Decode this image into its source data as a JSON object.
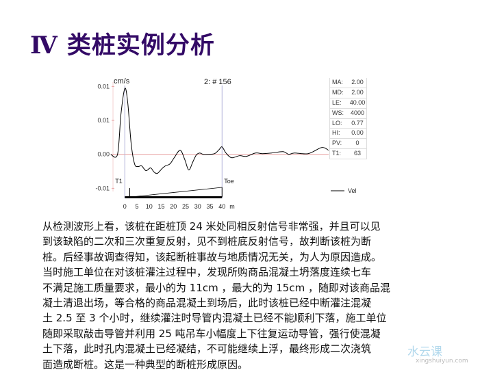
{
  "title": "Ⅳ 类桩实例分析",
  "chart_data": {
    "type": "line",
    "unit_label": "cm/s",
    "header": "2: # 156",
    "xlabel": "m",
    "x_ticks": [
      "0",
      "5",
      "10",
      "15",
      "20",
      "25",
      "30",
      "35",
      "40"
    ],
    "y_ticks": [
      {
        "value": 0.01,
        "label": "0.01"
      },
      {
        "value": 0.005,
        "label": "0.01"
      },
      {
        "value": 0.0,
        "label": "0.00"
      },
      {
        "value": -0.005,
        "label": "-0.01"
      }
    ],
    "markers": [
      {
        "label": "T1",
        "x": 0
      },
      {
        "label": "Toe",
        "x": 40
      }
    ],
    "legend": {
      "label": "Vel",
      "placement": "right"
    },
    "series": [
      {
        "name": "Vel",
        "x": [
          -5.8,
          -3.0,
          -1.6,
          0,
          1.2,
          2.6,
          4.0,
          5.4,
          6.9,
          8.7,
          10.6,
          12.0,
          13.4,
          15.3,
          16.7,
          18.6,
          20.5,
          22.8,
          24.7,
          26.3,
          28.0,
          29.4,
          30.8,
          32.2,
          34.1,
          36.9,
          38.8,
          40.0,
          41.6,
          43.9,
          47.2,
          50.0,
          53.8,
          56.6,
          60.4,
          65.1,
          67.4,
          69.8,
          75.4,
          81.0,
          83.8
        ],
        "y": [
          0,
          0,
          0.0059,
          0.0097,
          0.0076,
          0.0016,
          -0.0014,
          -0.0018,
          -0.0017,
          -0.0024,
          -0.002,
          -0.0026,
          -0.0028,
          -0.0021,
          -0.0017,
          -0.0014,
          -0.0004,
          0.0006,
          -0.0008,
          -0.0023,
          -0.0011,
          -0.0001,
          0.0002,
          0,
          0,
          0.0001,
          0.0007,
          0.0011,
          0.0002,
          -0.0005,
          -0.0002,
          -0.0003,
          0.0002,
          0.0001,
          0.0002,
          0.0004,
          0,
          0.0002,
          0.0001,
          0.001,
          0.0006
        ]
      }
    ],
    "colors": {
      "trace": "#000000",
      "zero_line": "#e8a0a0",
      "marker_line": "#b0b0d8",
      "axis_ticks": "#e8a0a0"
    },
    "params": [
      {
        "key": "MA:",
        "value": "2.00"
      },
      {
        "key": "MD:",
        "value": "2.00"
      },
      {
        "key": "LE:",
        "value": "40.00"
      },
      {
        "key": "WS:",
        "value": "4000"
      },
      {
        "key": "LO:",
        "value": "0.77"
      },
      {
        "key": "HI:",
        "value": "0.00"
      },
      {
        "key": "PV:",
        "value": "0"
      },
      {
        "key": "T1:",
        "value": "63"
      }
    ]
  },
  "body_lines": [
    "从检测波形上看，该桩在距桩顶 24 米处同相反射信号非常强，并且可以见",
    "到该缺陷的二次和三次重复反射，见不到桩底反射信号，故判断该桩为断",
    "桩。后经事故调查得知，该起断桩事故与地质情况无关，为人为原因造成。",
    "当时施工单位在对该桩灌注过程中，发现所购商品混凝土坍落度连续七车",
    "不满足施工质量要求，最小的为 11cm ，最大的为 15cm ，随即对该商品混",
    "凝土清退出场，等合格的商品混凝土到场后，此时该桩已经中断灌注混凝",
    "土 2.5 至 3 个小时，继续灌注时导管内混凝土已经不能顺利下落，施工单位",
    "随即采取敲击导管并利用 25 吨吊车小幅度上下往复运动导管，强行使混凝",
    "土下落，此时孔内混凝土已经凝结，不可能继续上浮，最终形成二次浇筑",
    "面造成断桩。这是一种典型的断桩形成原因。"
  ],
  "watermark": {
    "text": "行水云课",
    "url": "xingshuiyun.com"
  }
}
